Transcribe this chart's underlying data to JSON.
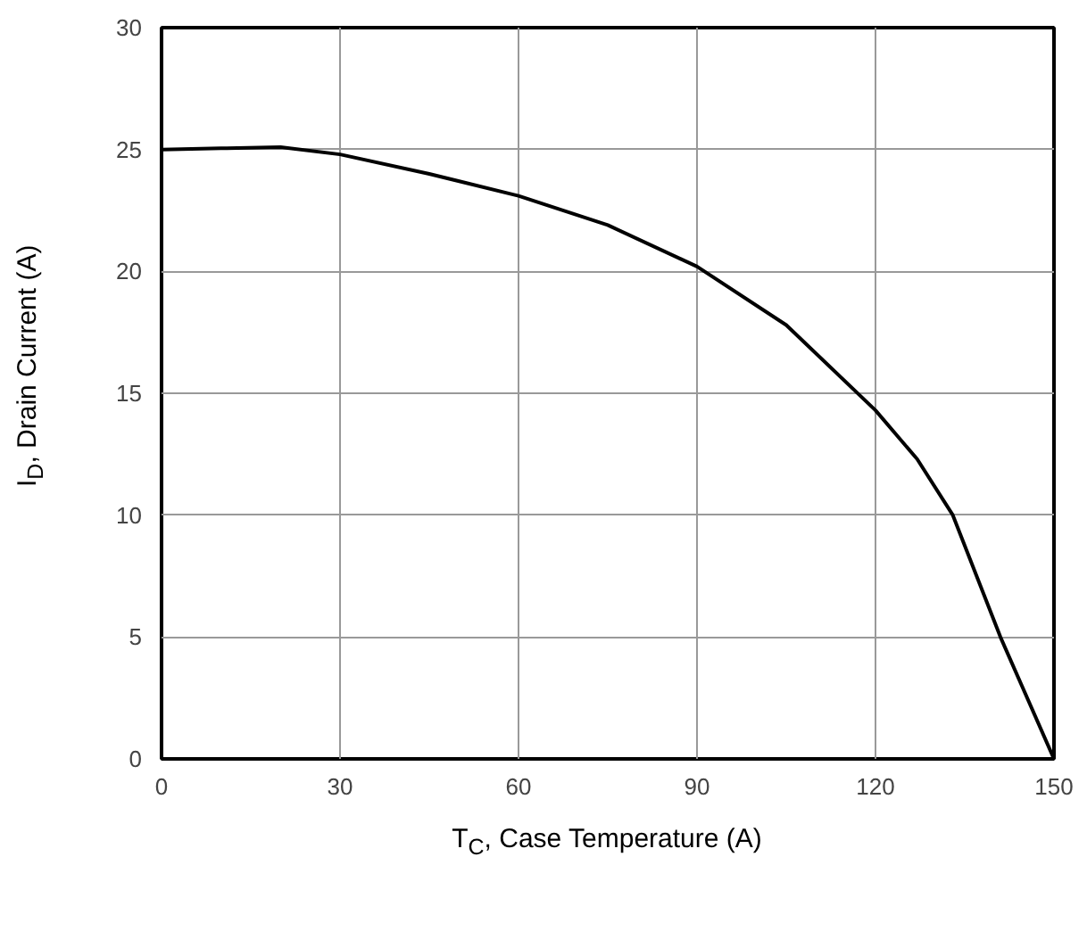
{
  "chart_data": {
    "type": "line",
    "xlabel": "T$_{C}$, Case Temperature (A)",
    "ylabel": "I$_{D}$, Drain Current (A)",
    "x": [
      0,
      10,
      20,
      30,
      45,
      60,
      75,
      90,
      105,
      120,
      127,
      133,
      141,
      150
    ],
    "series": [
      {
        "color": "#000000",
        "values": [
          25,
          25.05,
          25.1,
          24.8,
          24,
          23.1,
          21.9,
          20.2,
          17.8,
          14.3,
          12.3,
          10,
          5,
          0
        ]
      }
    ],
    "xlim": [
      0,
      150
    ],
    "ylim": [
      0,
      30
    ],
    "xticks": [
      0,
      30,
      60,
      90,
      120,
      150
    ],
    "yticks": [
      0,
      5,
      10,
      15,
      20,
      25,
      30
    ],
    "grid": true,
    "marker": "none",
    "line_style": "solid"
  }
}
